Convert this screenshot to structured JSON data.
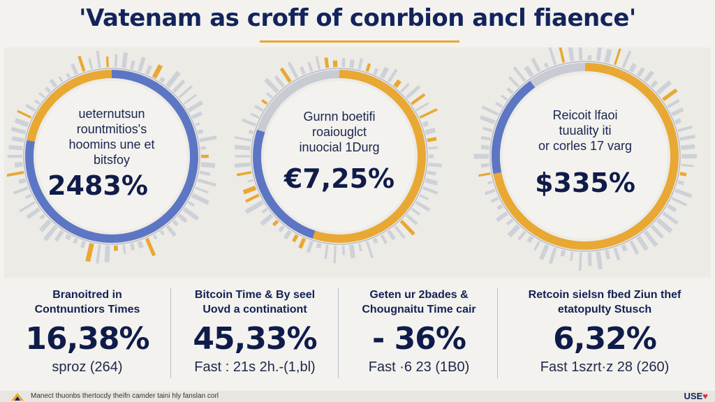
{
  "title": "'Vatenam as croff of conrbion ancl fiaence'",
  "colors": {
    "accent": "#e8a833",
    "blue": "#5d76c4",
    "navy": "#13245c",
    "gray": "#c9cbd3"
  },
  "chart_data": [
    {
      "type": "pie",
      "label_lines": [
        "ueternutsun",
        "rountmitios's",
        "hoomins une et",
        "bitsfoy"
      ],
      "value_label": "2483%",
      "segments": [
        {
          "color": "blue",
          "fraction": 0.78
        },
        {
          "color": "accent",
          "fraction": 0.22
        }
      ]
    },
    {
      "type": "pie",
      "label_lines": [
        "Gurnn boetifi",
        "roaiouglct",
        "inuocial 1Durg"
      ],
      "value_label": "€7,25%",
      "segments": [
        {
          "color": "accent",
          "fraction": 0.55
        },
        {
          "color": "blue",
          "fraction": 0.25
        },
        {
          "color": "gray",
          "fraction": 0.2
        }
      ]
    },
    {
      "type": "pie",
      "label_lines": [
        "Reicoit lfaoi",
        "tuuality iti",
        "or corles 17 varg"
      ],
      "value_label": "$335%",
      "segments": [
        {
          "color": "accent",
          "fraction": 0.72
        },
        {
          "color": "blue",
          "fraction": 0.18
        },
        {
          "color": "gray",
          "fraction": 0.1
        }
      ]
    }
  ],
  "stats": [
    {
      "title_lines": [
        "Branoitred in",
        "Contnuntiors Times"
      ],
      "value": "16,38%",
      "sub": "sproz (264)"
    },
    {
      "title_lines": [
        "Bitcoin Time & By seel",
        "Uovd a continationt"
      ],
      "value": "45,33%",
      "sub": "Fast : 21s 2h.-(1,bl)"
    },
    {
      "title_lines": [
        "Geten ur 2bades &",
        "Chougnaitu Time cair"
      ],
      "value": "- 36%",
      "sub": "Fast ·6 23 (1B0)"
    },
    {
      "title_lines": [
        "Retcoin sielsn fbed Ziun thef",
        "etatopulty Stusch"
      ],
      "value": "6,32%",
      "sub": "Fast 1szrt·z 28 (260)"
    }
  ],
  "footer": {
    "text": "Manect thuonbs thertocdy theifn camder taini hly fanslan corl",
    "logo": "USE",
    "heart_icon": "heart-icon"
  }
}
